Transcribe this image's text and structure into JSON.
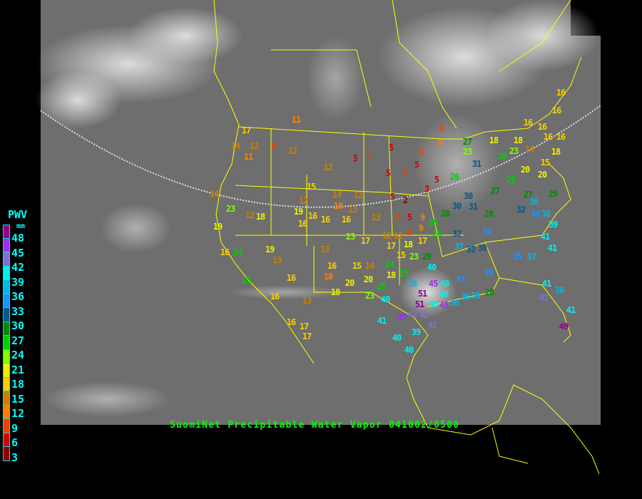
{
  "title": "SuomiNet Precipitable Water Vapor 041002/0500",
  "legend": {
    "title": "PWV",
    "unit": "mm",
    "ticks": [
      "48",
      "45",
      "42",
      "39",
      "36",
      "33",
      "30",
      "27",
      "24",
      "21",
      "18",
      "15",
      "12",
      "9",
      "6",
      "3"
    ],
    "colors": [
      "#900090",
      "#9a30f0",
      "#8070d0",
      "#00f0f0",
      "#00b8e8",
      "#1e90ff",
      "#005a90",
      "#008c00",
      "#00d000",
      "#80ff00",
      "#f0f000",
      "#f8d000",
      "#c88000",
      "#ff8000",
      "#f04000",
      "#d00000",
      "#8b0000"
    ]
  },
  "stations": [
    11,
    17,
    14,
    12,
    11,
    8,
    12,
    12,
    5,
    7,
    5,
    6,
    8,
    9,
    5,
    7,
    5,
    5,
    2,
    3,
    5,
    26,
    31,
    27,
    23,
    18,
    18,
    14,
    23,
    26,
    16,
    16,
    16,
    16,
    16,
    16,
    18,
    15,
    20,
    26,
    20,
    27,
    27,
    29,
    30,
    30,
    31,
    28,
    25,
    28,
    32,
    34,
    36,
    32,
    34,
    38,
    39,
    41,
    26,
    9,
    5,
    8,
    9,
    14,
    23,
    12,
    18,
    12,
    19,
    15,
    14,
    12,
    10,
    13,
    16,
    16,
    16,
    16,
    13,
    19,
    16,
    24,
    19,
    13,
    13,
    23,
    17,
    12,
    12,
    8,
    17,
    18,
    17,
    23,
    29,
    15,
    24,
    18,
    40,
    16,
    16,
    10,
    15,
    14,
    20,
    25,
    25,
    38,
    51,
    45,
    40,
    40,
    36,
    36,
    28,
    33,
    33,
    40,
    51,
    42,
    42,
    45,
    36,
    40,
    23,
    20,
    18,
    25,
    16,
    13,
    16,
    17,
    17,
    45,
    41,
    42,
    40,
    39,
    40,
    35,
    37,
    41,
    36,
    42,
    41,
    49,
    32,
    30,
    37,
    41
  ]
}
